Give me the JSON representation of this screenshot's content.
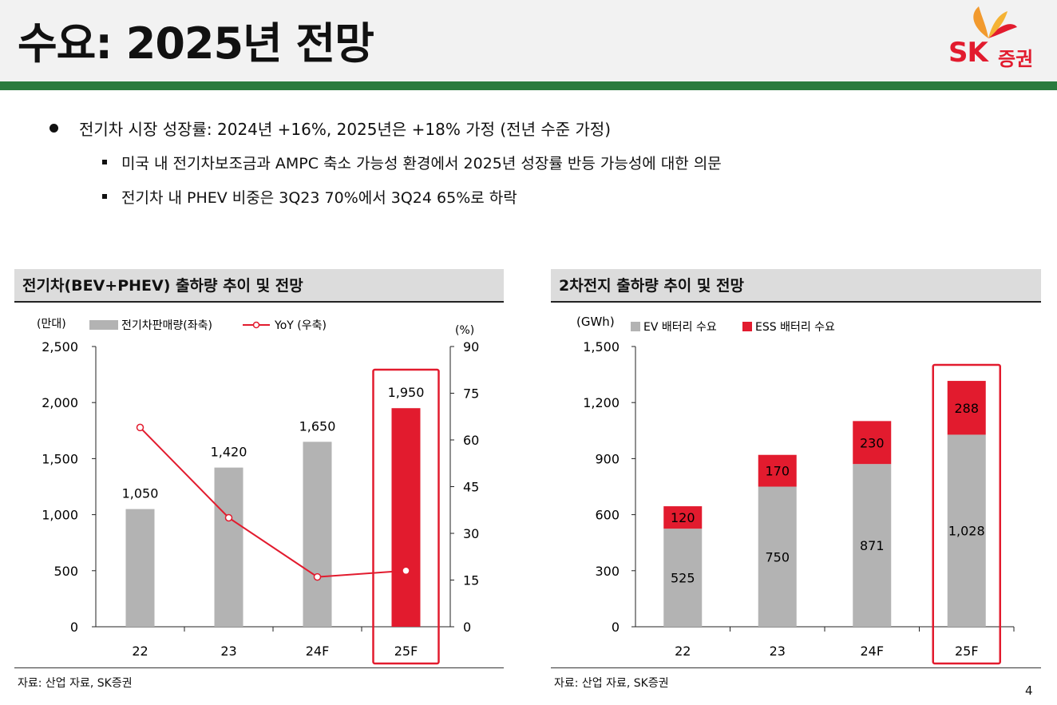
{
  "page": {
    "title": "수요: 2025년 전망",
    "logo_text_sk": "SK",
    "logo_text_kr": "증권",
    "page_number": "4",
    "colors": {
      "accent_green": "#2b7a3e",
      "brand_red": "#e21b2e",
      "bar_gray": "#b3b3b3"
    }
  },
  "bullets": {
    "main": "전기차 시장 성장률: 2024년 +16%, 2025년은 +18% 가정 (전년 수준 가정)",
    "sub1": "미국 내 전기차보조금과 AMPC 축소 가능성 환경에서 2025년 성장률 반등 가능성에 대한 의문",
    "sub2": "전기차 내 PHEV 비중은 3Q23 70%에서 3Q24 65%로 하락"
  },
  "left_panel": {
    "title": "전기차(BEV+PHEV) 출하량 추이 및 전망",
    "source": "자료: 산업 자료, SK증권"
  },
  "right_panel": {
    "title": "2차전지 출하량 추이 및 전망",
    "source": "자료: 산업 자료, SK증권"
  },
  "chart_data": [
    {
      "type": "bar",
      "title": "전기차(BEV+PHEV) 출하량 추이 및 전망",
      "categories": [
        "22",
        "23",
        "24F",
        "25F"
      ],
      "series": [
        {
          "name": "전기차판매량(좌축)",
          "values": [
            1050,
            1420,
            1650,
            1950
          ],
          "labels": [
            "1,050",
            "1,420",
            "1,650",
            "1,950"
          ]
        },
        {
          "name": "YoY (우축)",
          "type": "line",
          "axis": "right",
          "values": [
            64,
            35,
            16,
            18
          ]
        }
      ],
      "y_left_label": "(만대)",
      "ylim": [
        0,
        2500
      ],
      "y_ticks": [
        "0",
        "500",
        "1,000",
        "1,500",
        "2,000",
        "2,500"
      ],
      "y_right_label": "(%)",
      "y2lim": [
        0,
        90
      ],
      "y2_ticks": [
        "0",
        "15",
        "30",
        "45",
        "60",
        "75",
        "90"
      ],
      "highlight": "25F"
    },
    {
      "type": "bar",
      "stacked": true,
      "title": "2차전지 출하량 추이 및 전망",
      "categories": [
        "22",
        "23",
        "24F",
        "25F"
      ],
      "series": [
        {
          "name": "EV 배터리 수요",
          "values": [
            525,
            750,
            871,
            1028
          ],
          "labels": [
            "525",
            "750",
            "871",
            "1,028"
          ]
        },
        {
          "name": "ESS 배터리 수요",
          "values": [
            120,
            170,
            230,
            288
          ],
          "labels": [
            "120",
            "170",
            "230",
            "288"
          ]
        }
      ],
      "y_left_label": "(GWh)",
      "ylim": [
        0,
        1500
      ],
      "y_ticks": [
        "0",
        "300",
        "600",
        "900",
        "1,200",
        "1,500"
      ],
      "highlight": "25F"
    }
  ]
}
